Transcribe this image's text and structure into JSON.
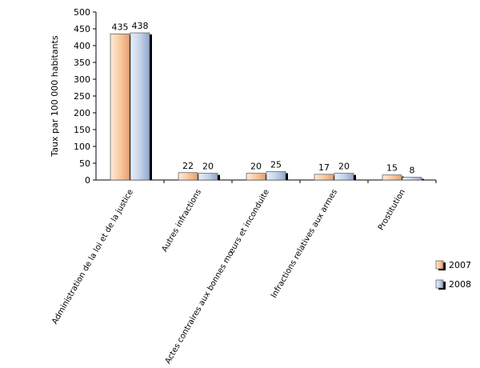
{
  "chart_data": {
    "type": "bar",
    "title": "",
    "xlabel": "",
    "ylabel": "Taux par 100 000 habitants",
    "ylim": [
      0,
      500
    ],
    "yticks": [
      0,
      50,
      100,
      150,
      200,
      250,
      300,
      350,
      400,
      450,
      500
    ],
    "categories": [
      "Administration de la loi et de la justice",
      "Autres infractions",
      "Actes contraires aux bonnes mœurs et inconduite",
      "Infractions relatives aux armes",
      "Prostitution"
    ],
    "series": [
      {
        "name": "2007",
        "values": [
          435,
          22,
          20,
          17,
          15
        ],
        "color": "#F9C9A0"
      },
      {
        "name": "2008",
        "values": [
          438,
          20,
          25,
          20,
          8
        ],
        "color": "#C5D3EA"
      }
    ],
    "grid": false,
    "legend_position": "right"
  }
}
